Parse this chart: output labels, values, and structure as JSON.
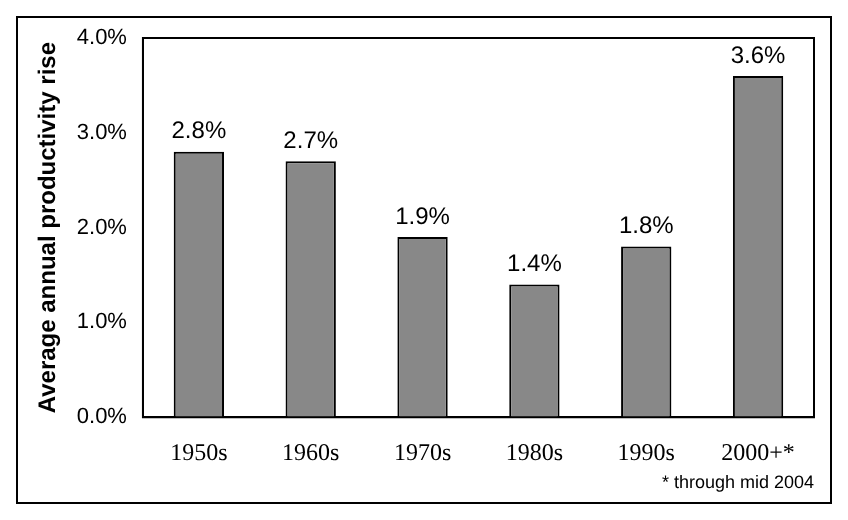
{
  "chart_data": {
    "type": "bar",
    "ylabel": "Average annual productivity rise",
    "categories": [
      "1950s",
      "1960s",
      "1970s",
      "1980s",
      "1990s",
      "2000+*"
    ],
    "values": [
      2.8,
      2.7,
      1.9,
      1.4,
      1.8,
      3.6
    ],
    "value_labels": [
      "2.8%",
      "2.7%",
      "1.9%",
      "1.4%",
      "1.8%",
      "3.6%"
    ],
    "color": "#888888",
    "ylim": [
      0,
      4
    ],
    "yticks": [
      {
        "value": 0,
        "label": "0.0%"
      },
      {
        "value": 1,
        "label": "1.0%"
      },
      {
        "value": 2,
        "label": "2.0%"
      },
      {
        "value": 3,
        "label": "3.0%"
      },
      {
        "value": 4,
        "label": "4.0%"
      }
    ],
    "annotations": [
      "* through mid 2004"
    ]
  }
}
